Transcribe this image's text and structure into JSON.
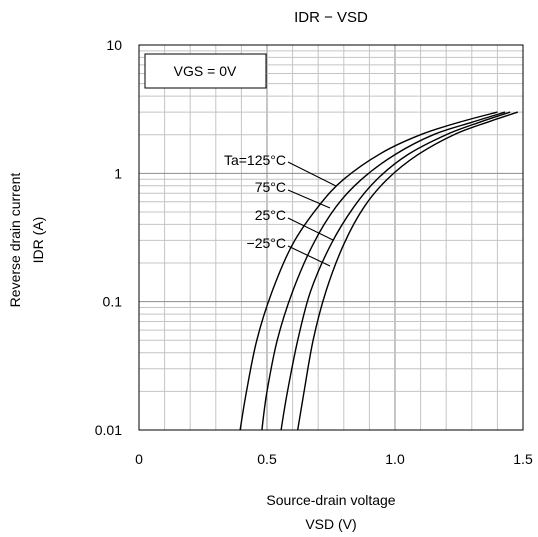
{
  "chart_data": {
    "type": "line",
    "title": "IDR − VSD",
    "xlabel": "Source-drain voltage",
    "xlabel_unit": "VSD (V)",
    "ylabel": "Reverse drain current",
    "ylabel_unit": "IDR (A)",
    "xlim": [
      0,
      1.5
    ],
    "ylim": [
      0.01,
      10
    ],
    "yscale": "log",
    "grid": true,
    "x_ticks": [
      {
        "value": 0,
        "label": "0"
      },
      {
        "value": 0.5,
        "label": "0.5"
      },
      {
        "value": 1.0,
        "label": "1.0"
      },
      {
        "value": 1.5,
        "label": "1.5"
      }
    ],
    "y_ticks": [
      {
        "value": 0.01,
        "label": "0.01"
      },
      {
        "value": 0.1,
        "label": "0.1"
      },
      {
        "value": 1,
        "label": "1"
      },
      {
        "value": 10,
        "label": "10"
      }
    ],
    "condition_box": "VGS = 0V",
    "series": [
      {
        "name": "Ta=125°C",
        "label_x": 0.78,
        "label_y": 0.8,
        "points": [
          [
            0.395,
            0.01
          ],
          [
            0.42,
            0.02
          ],
          [
            0.46,
            0.05
          ],
          [
            0.52,
            0.12
          ],
          [
            0.6,
            0.28
          ],
          [
            0.7,
            0.55
          ],
          [
            0.8,
            0.9
          ],
          [
            0.95,
            1.45
          ],
          [
            1.1,
            2.0
          ],
          [
            1.25,
            2.5
          ],
          [
            1.4,
            3.0
          ]
        ]
      },
      {
        "name": "75°C",
        "label_x": 0.73,
        "label_y": 0.44,
        "points": [
          [
            0.48,
            0.01
          ],
          [
            0.5,
            0.02
          ],
          [
            0.54,
            0.05
          ],
          [
            0.6,
            0.12
          ],
          [
            0.68,
            0.28
          ],
          [
            0.77,
            0.55
          ],
          [
            0.87,
            0.9
          ],
          [
            1.0,
            1.4
          ],
          [
            1.15,
            2.0
          ],
          [
            1.3,
            2.5
          ],
          [
            1.43,
            3.0
          ]
        ]
      },
      {
        "name": "25°C",
        "label_x": 0.76,
        "label_y": 0.23,
        "points": [
          [
            0.555,
            0.01
          ],
          [
            0.58,
            0.02
          ],
          [
            0.62,
            0.05
          ],
          [
            0.67,
            0.12
          ],
          [
            0.75,
            0.28
          ],
          [
            0.84,
            0.55
          ],
          [
            0.93,
            0.9
          ],
          [
            1.05,
            1.4
          ],
          [
            1.2,
            2.0
          ],
          [
            1.33,
            2.5
          ],
          [
            1.45,
            3.0
          ]
        ]
      },
      {
        "name": "−25°C",
        "label_x": 0.75,
        "label_y": 0.15,
        "points": [
          [
            0.62,
            0.01
          ],
          [
            0.645,
            0.02
          ],
          [
            0.68,
            0.05
          ],
          [
            0.73,
            0.12
          ],
          [
            0.8,
            0.28
          ],
          [
            0.88,
            0.55
          ],
          [
            0.97,
            0.9
          ],
          [
            1.09,
            1.4
          ],
          [
            1.23,
            2.0
          ],
          [
            1.36,
            2.5
          ],
          [
            1.48,
            3.0
          ]
        ]
      }
    ]
  }
}
